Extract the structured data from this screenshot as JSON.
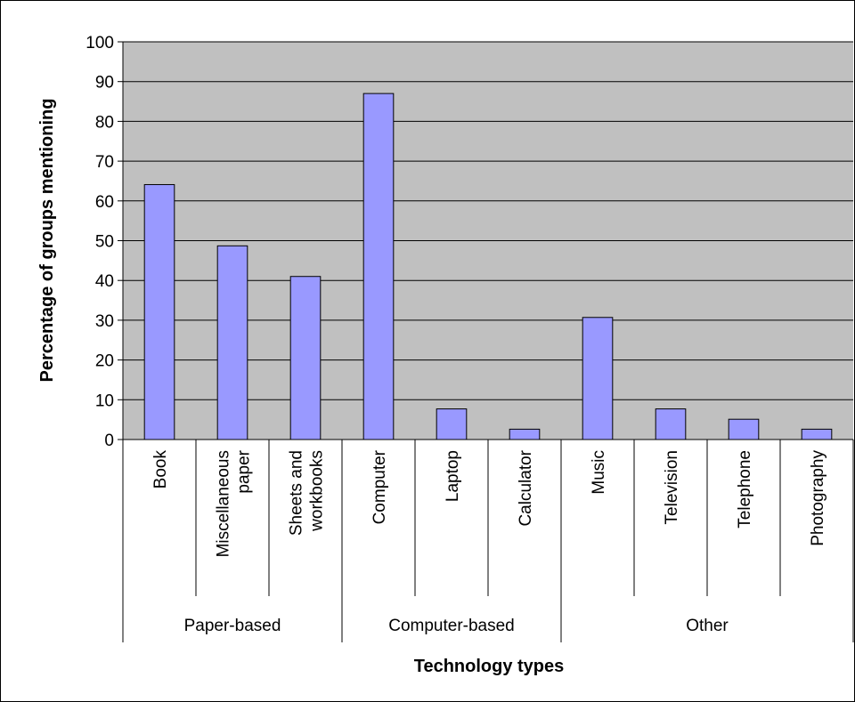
{
  "chart_data": {
    "type": "bar",
    "title": "",
    "xlabel": "Technology types",
    "ylabel": "Percentage of groups mentioning",
    "ylim": [
      0,
      100
    ],
    "yticks": [
      "0",
      "10",
      "20",
      "30",
      "40",
      "50",
      "60",
      "70",
      "80",
      "90",
      "100"
    ],
    "grid": "horizontal",
    "legend": "none",
    "categories": [
      {
        "label": [
          "Book"
        ]
      },
      {
        "label": [
          "Miscellaneous",
          "paper"
        ]
      },
      {
        "label": [
          "Sheets and",
          "workbooks"
        ]
      },
      {
        "label": [
          "Computer"
        ]
      },
      {
        "label": [
          "Laptop"
        ]
      },
      {
        "label": [
          "Calculator"
        ]
      },
      {
        "label": [
          "Music"
        ]
      },
      {
        "label": [
          "Television"
        ]
      },
      {
        "label": [
          "Telephone"
        ]
      },
      {
        "label": [
          "Photography"
        ]
      }
    ],
    "values": [
      64.1,
      48.7,
      41.0,
      87.0,
      7.7,
      2.6,
      30.7,
      7.7,
      5.1,
      2.6
    ],
    "groups": [
      {
        "name": "Paper-based",
        "count": 3
      },
      {
        "name": "Computer-based",
        "count": 3
      },
      {
        "name": "Other",
        "count": 4
      }
    ],
    "colors": {
      "bar": "#9999ff",
      "plot_bg": "#c0c0c0",
      "grid": "#000000"
    }
  }
}
